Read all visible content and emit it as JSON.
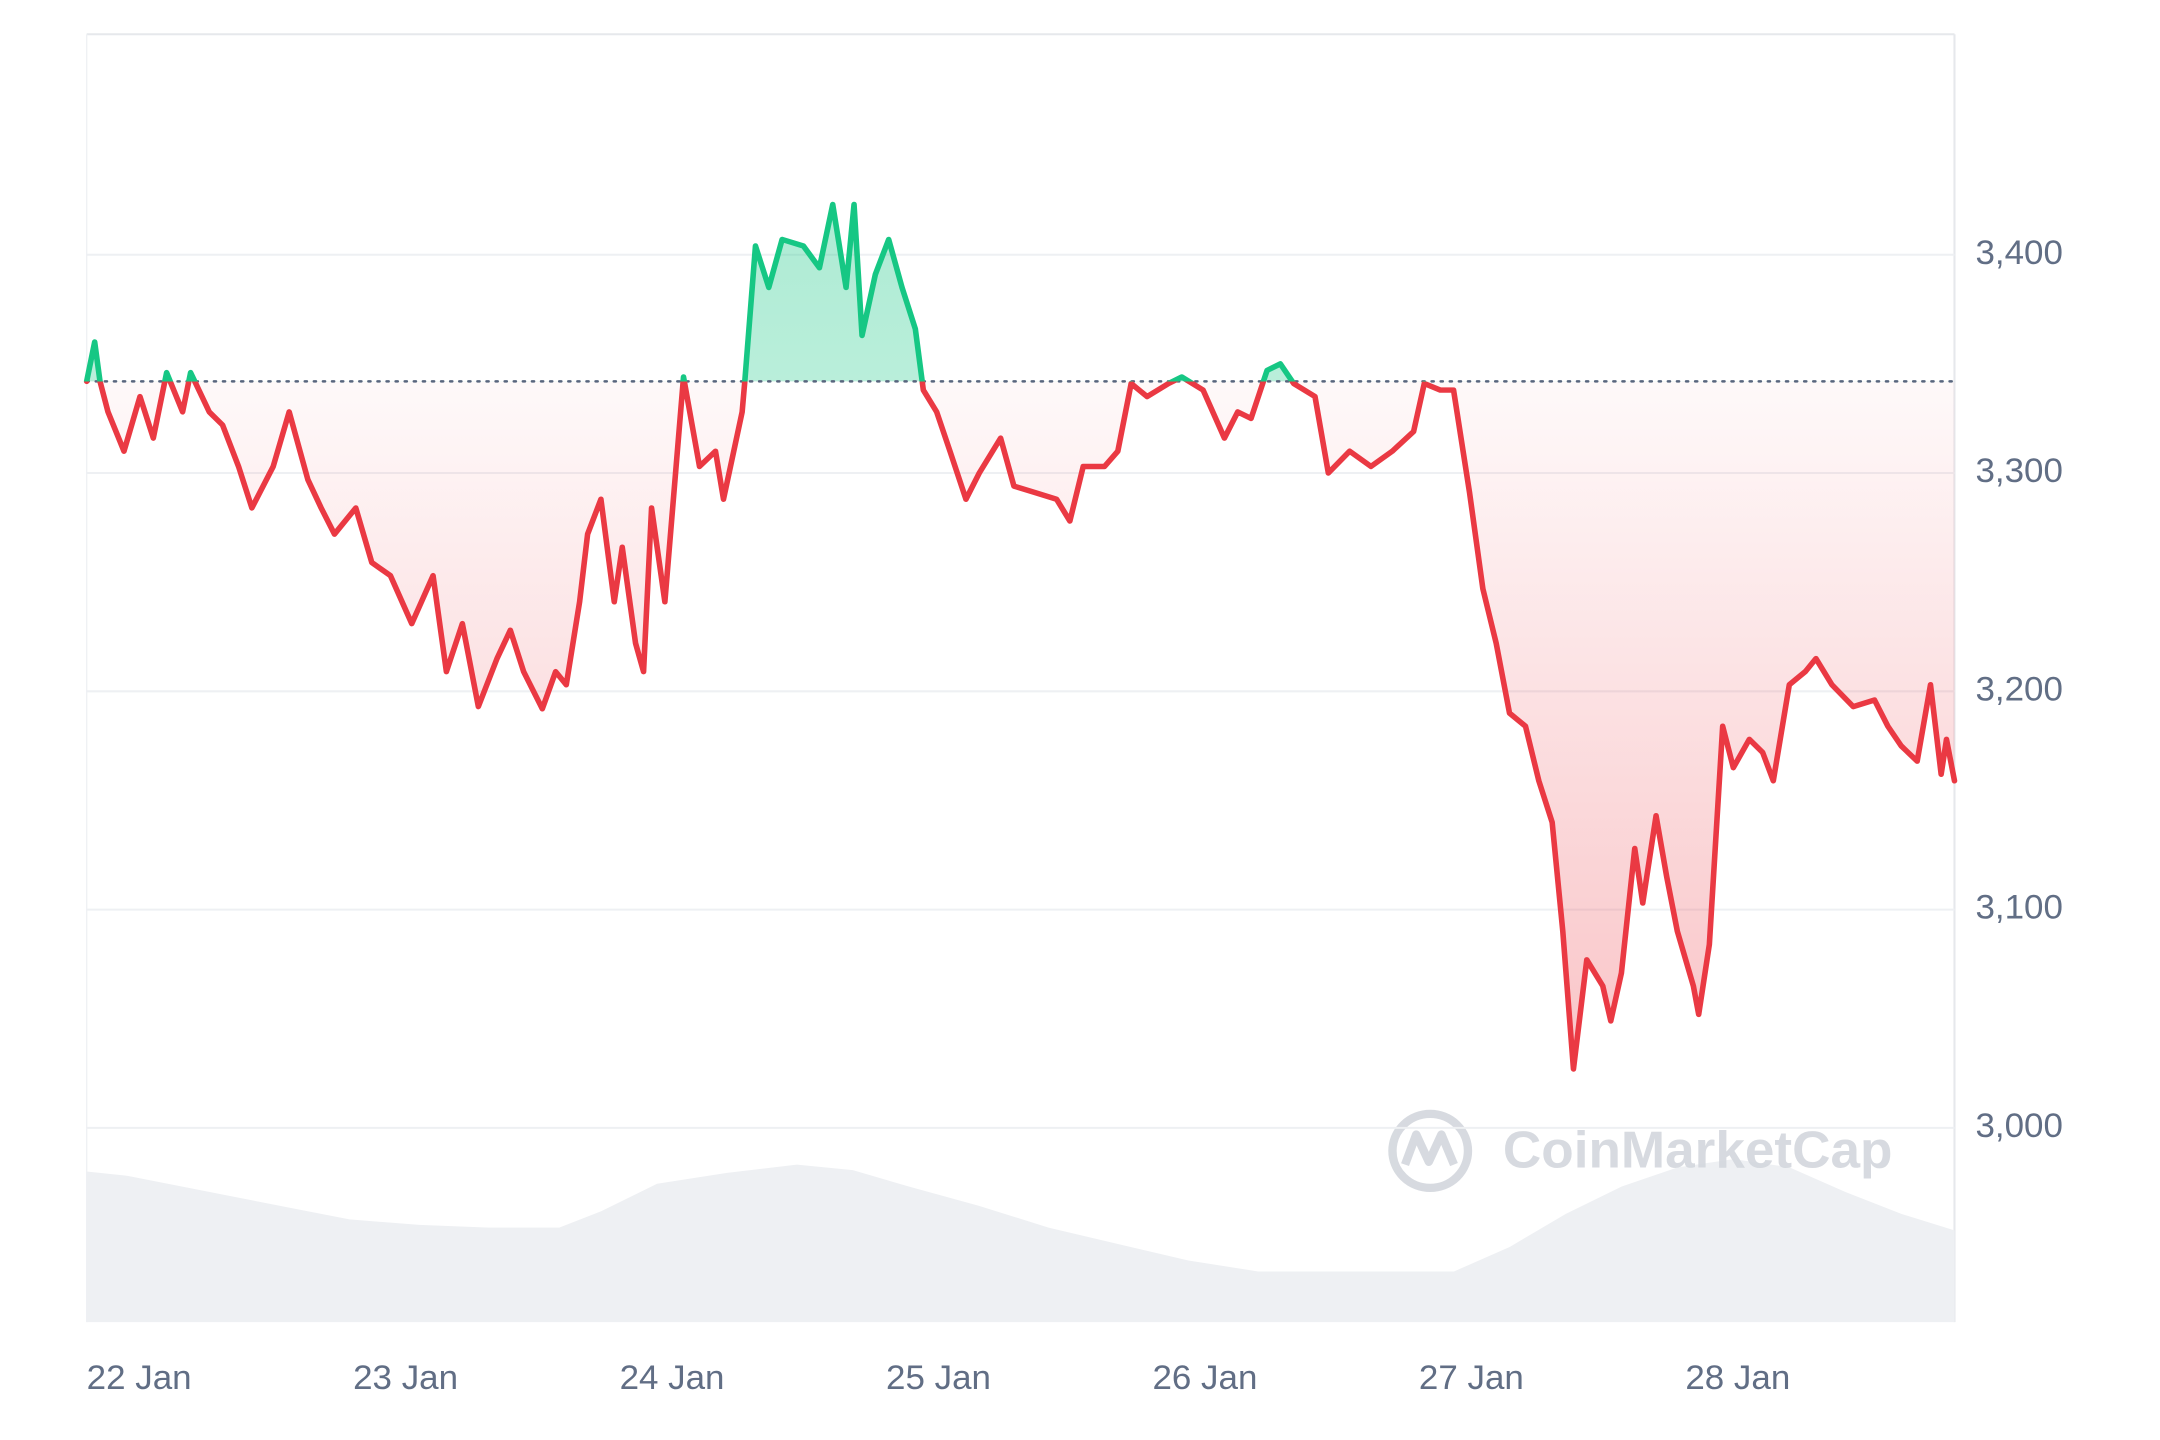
{
  "chart_data": {
    "type": "line",
    "watermark": "CoinMarketCap",
    "x": [
      0,
      0.03,
      0.05,
      0.08,
      0.14,
      0.2,
      0.25,
      0.3,
      0.36,
      0.39,
      0.46,
      0.51,
      0.57,
      0.62,
      0.7,
      0.76,
      0.83,
      0.88,
      0.93,
      1.01,
      1.07,
      1.14,
      1.22,
      1.3,
      1.35,
      1.41,
      1.47,
      1.54,
      1.59,
      1.64,
      1.71,
      1.76,
      1.8,
      1.85,
      1.88,
      1.93,
      1.98,
      2.01,
      2.06,
      2.09,
      2.12,
      2.17,
      2.24,
      2.3,
      2.36,
      2.39,
      2.46,
      2.47,
      2.51,
      2.56,
      2.61,
      2.69,
      2.75,
      2.8,
      2.85,
      2.88,
      2.91,
      2.96,
      3.01,
      3.06,
      3.11,
      3.14,
      3.19,
      3.24,
      3.3,
      3.35,
      3.43,
      3.48,
      3.56,
      3.64,
      3.69,
      3.74,
      3.82,
      3.87,
      3.92,
      3.98,
      4.06,
      4.11,
      4.19,
      4.27,
      4.32,
      4.37,
      4.43,
      4.48,
      4.53,
      4.61,
      4.66,
      4.74,
      4.82,
      4.9,
      4.98,
      5.02,
      5.08,
      5.13,
      5.19,
      5.24,
      5.29,
      5.34,
      5.4,
      5.45,
      5.5,
      5.54,
      5.58,
      5.63,
      5.69,
      5.72,
      5.76,
      5.81,
      5.84,
      5.89,
      5.93,
      5.97,
      6.03,
      6.05,
      6.09,
      6.14,
      6.18,
      6.24,
      6.29,
      6.33,
      6.39,
      6.45,
      6.49,
      6.55,
      6.63,
      6.71,
      6.76,
      6.81,
      6.87,
      6.92,
      6.96,
      6.98,
      7.01
    ],
    "values": [
      3342,
      3360,
      3342,
      3328,
      3310,
      3335,
      3316,
      3346,
      3328,
      3346,
      3328,
      3322,
      3303,
      3284,
      3303,
      3328,
      3297,
      3284,
      3272,
      3284,
      3259,
      3253,
      3231,
      3253,
      3209,
      3231,
      3193,
      3215,
      3228,
      3209,
      3192,
      3209,
      3203,
      3241,
      3272,
      3288,
      3241,
      3266,
      3222,
      3209,
      3284,
      3241,
      3344,
      3303,
      3310,
      3288,
      3328,
      3342,
      3404,
      3385,
      3407,
      3404,
      3394,
      3423,
      3385,
      3423,
      3363,
      3391,
      3407,
      3385,
      3366,
      3338,
      3328,
      3310,
      3288,
      3300,
      3316,
      3294,
      3291,
      3288,
      3278,
      3303,
      3303,
      3310,
      3341,
      3335,
      3341,
      3344,
      3338,
      3316,
      3328,
      3325,
      3347,
      3350,
      3341,
      3335,
      3300,
      3310,
      3303,
      3310,
      3319,
      3341,
      3338,
      3338,
      3291,
      3247,
      3222,
      3190,
      3184,
      3159,
      3140,
      3090,
      3027,
      3077,
      3065,
      3049,
      3071,
      3128,
      3103,
      3143,
      3115,
      3090,
      3065,
      3052,
      3084,
      3184,
      3165,
      3178,
      3172,
      3159,
      3203,
      3209,
      3215,
      3203,
      3193,
      3196,
      3184,
      3175,
      3168,
      3203,
      3162,
      3178,
      3159
    ],
    "baseline": 3342,
    "up_color": "#16c784",
    "down_color": "#ea3943",
    "xlim": [
      0,
      7.01
    ],
    "xticks": [
      {
        "value": 0,
        "label": "22 Jan"
      },
      {
        "value": 1,
        "label": "23 Jan"
      },
      {
        "value": 2,
        "label": "24 Jan"
      },
      {
        "value": 3,
        "label": "25 Jan"
      },
      {
        "value": 4,
        "label": "26 Jan"
      },
      {
        "value": 5,
        "label": "27 Jan"
      },
      {
        "value": 6,
        "label": "28 Jan"
      }
    ],
    "ylim": [
      2911,
      3501
    ],
    "yticks": [
      {
        "value": 3000,
        "label": "3,000"
      },
      {
        "value": 3100,
        "label": "3,100"
      },
      {
        "value": 3200,
        "label": "3,200"
      },
      {
        "value": 3300,
        "label": "3,300"
      },
      {
        "value": 3400,
        "label": "3,400"
      }
    ],
    "grid": true
  }
}
